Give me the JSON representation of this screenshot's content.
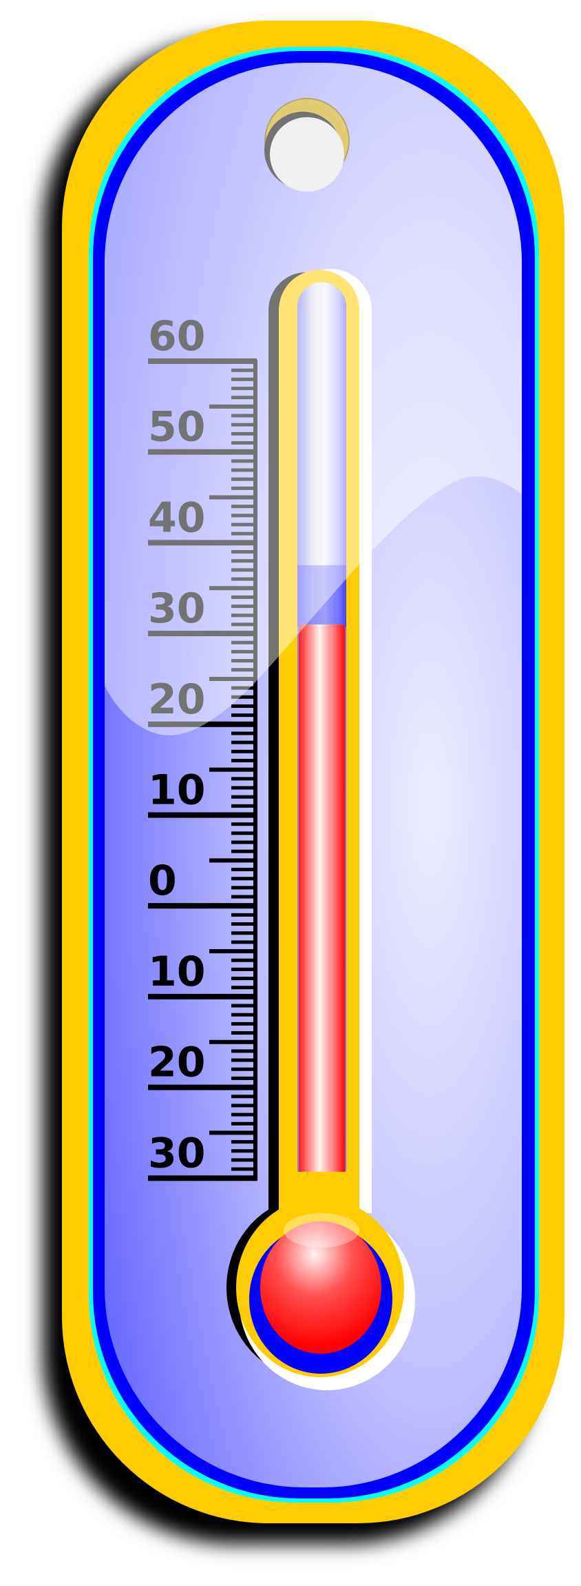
{
  "thermometer": {
    "scale_labels": [
      "60",
      "50",
      "40",
      "30",
      "20",
      "10",
      "0",
      "10",
      "20",
      "30"
    ],
    "scale_values": [
      60,
      50,
      40,
      30,
      20,
      10,
      0,
      -10,
      -20,
      -30
    ],
    "temperature": 31,
    "colors": {
      "frame": "#FFCC00",
      "frame_edge_outer": "#00FFFF",
      "frame_edge_inner": "#0000FF",
      "face": "#B4B4FF",
      "mercury": "#FF0000",
      "scale_ink": "#000000"
    },
    "icons": [
      "hanging-hole",
      "mercury-bulb"
    ]
  }
}
